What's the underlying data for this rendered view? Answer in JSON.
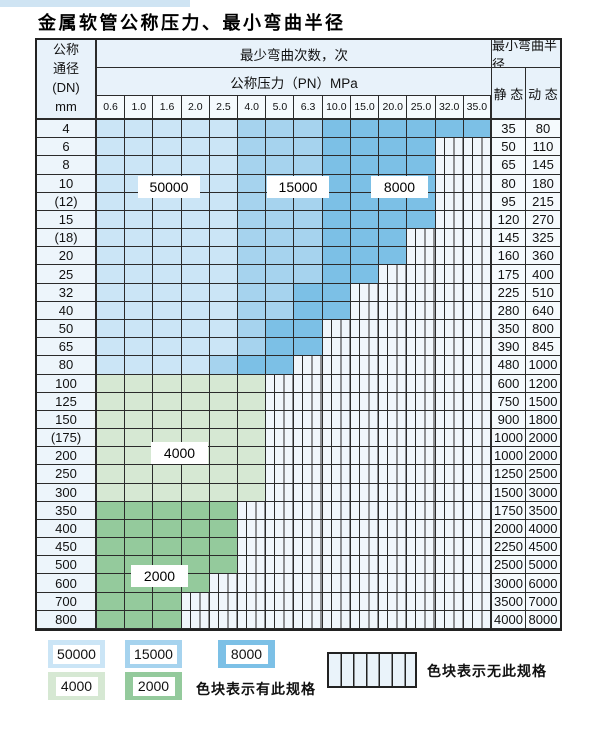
{
  "page": {
    "title": "金属软管公称压力、最小弯曲半径"
  },
  "table": {
    "header": {
      "dn_title": "公称\n通径\n(DN)\nmm",
      "bend_cycles": "最少弯曲次数，次",
      "pn": "公称压力（PN）MPa",
      "radius": "最小弯曲半径",
      "static": "静 态",
      "dynamic": "动 态",
      "pressures": [
        "0.6",
        "1.0",
        "1.6",
        "2.0",
        "2.5",
        "4.0",
        "5.0",
        "6.3",
        "10.0",
        "15.0",
        "20.0",
        "25.0",
        "32.0",
        "35.0"
      ]
    },
    "rows": [
      {
        "dn": "4",
        "s": "35",
        "d": "80",
        "bands": [
          [
            "blue-light",
            5
          ],
          [
            "blue-mid",
            3
          ],
          [
            "blue-dark",
            6
          ]
        ]
      },
      {
        "dn": "6",
        "s": "50",
        "d": "110",
        "bands": [
          [
            "blue-light",
            5
          ],
          [
            "blue-mid",
            3
          ],
          [
            "blue-dark",
            4
          ]
        ]
      },
      {
        "dn": "8",
        "s": "65",
        "d": "145",
        "bands": [
          [
            "blue-light",
            5
          ],
          [
            "blue-mid",
            3
          ],
          [
            "blue-dark",
            4
          ]
        ]
      },
      {
        "dn": "10",
        "s": "80",
        "d": "180",
        "bands": [
          [
            "blue-light",
            5
          ],
          [
            "blue-mid",
            3
          ],
          [
            "blue-dark",
            4
          ]
        ]
      },
      {
        "dn": "(12)",
        "s": "95",
        "d": "215",
        "bands": [
          [
            "blue-light",
            5
          ],
          [
            "blue-mid",
            3
          ],
          [
            "blue-dark",
            4
          ]
        ]
      },
      {
        "dn": "15",
        "s": "120",
        "d": "270",
        "bands": [
          [
            "blue-light",
            5
          ],
          [
            "blue-mid",
            3
          ],
          [
            "blue-dark",
            4
          ]
        ]
      },
      {
        "dn": "(18)",
        "s": "145",
        "d": "325",
        "bands": [
          [
            "blue-light",
            5
          ],
          [
            "blue-mid",
            3
          ],
          [
            "blue-dark",
            3
          ]
        ]
      },
      {
        "dn": "20",
        "s": "160",
        "d": "360",
        "bands": [
          [
            "blue-light",
            5
          ],
          [
            "blue-mid",
            3
          ],
          [
            "blue-dark",
            3
          ]
        ]
      },
      {
        "dn": "25",
        "s": "175",
        "d": "400",
        "bands": [
          [
            "blue-light",
            5
          ],
          [
            "blue-mid",
            3
          ],
          [
            "blue-dark",
            2
          ]
        ]
      },
      {
        "dn": "32",
        "s": "225",
        "d": "510",
        "bands": [
          [
            "blue-light",
            5
          ],
          [
            "blue-mid",
            2
          ],
          [
            "blue-dark",
            2
          ]
        ]
      },
      {
        "dn": "40",
        "s": "280",
        "d": "640",
        "bands": [
          [
            "blue-light",
            5
          ],
          [
            "blue-mid",
            2
          ],
          [
            "blue-dark",
            2
          ]
        ]
      },
      {
        "dn": "50",
        "s": "350",
        "d": "800",
        "bands": [
          [
            "blue-light",
            5
          ],
          [
            "blue-mid",
            1
          ],
          [
            "blue-dark",
            2
          ]
        ]
      },
      {
        "dn": "65",
        "s": "390",
        "d": "845",
        "bands": [
          [
            "blue-light",
            5
          ],
          [
            "blue-mid",
            1
          ],
          [
            "blue-dark",
            2
          ]
        ]
      },
      {
        "dn": "80",
        "s": "480",
        "d": "1000",
        "bands": [
          [
            "blue-light",
            4
          ],
          [
            "blue-mid",
            1
          ],
          [
            "blue-dark",
            2
          ]
        ]
      },
      {
        "dn": "100",
        "s": "600",
        "d": "1200",
        "bands": [
          [
            "green-light",
            6
          ]
        ]
      },
      {
        "dn": "125",
        "s": "750",
        "d": "1500",
        "bands": [
          [
            "green-light",
            6
          ]
        ]
      },
      {
        "dn": "150",
        "s": "900",
        "d": "1800",
        "bands": [
          [
            "green-light",
            6
          ]
        ]
      },
      {
        "dn": "(175)",
        "s": "1000",
        "d": "2000",
        "bands": [
          [
            "green-light",
            6
          ]
        ]
      },
      {
        "dn": "200",
        "s": "1000",
        "d": "2000",
        "bands": [
          [
            "green-light",
            6
          ]
        ]
      },
      {
        "dn": "250",
        "s": "1250",
        "d": "2500",
        "bands": [
          [
            "green-light",
            6
          ]
        ]
      },
      {
        "dn": "300",
        "s": "1500",
        "d": "3000",
        "bands": [
          [
            "green-light",
            6
          ]
        ]
      },
      {
        "dn": "350",
        "s": "1750",
        "d": "3500",
        "bands": [
          [
            "green-mid",
            5
          ]
        ]
      },
      {
        "dn": "400",
        "s": "2000",
        "d": "4000",
        "bands": [
          [
            "green-mid",
            5
          ]
        ]
      },
      {
        "dn": "450",
        "s": "2250",
        "d": "4500",
        "bands": [
          [
            "green-mid",
            5
          ]
        ]
      },
      {
        "dn": "500",
        "s": "2500",
        "d": "5000",
        "bands": [
          [
            "green-mid",
            5
          ]
        ]
      },
      {
        "dn": "600",
        "s": "3000",
        "d": "6000",
        "bands": [
          [
            "green-mid",
            4
          ]
        ]
      },
      {
        "dn": "700",
        "s": "3500",
        "d": "7000",
        "bands": [
          [
            "green-mid",
            3
          ]
        ]
      },
      {
        "dn": "800",
        "s": "4000",
        "d": "8000",
        "bands": [
          [
            "green-mid",
            3
          ]
        ]
      }
    ]
  },
  "cycle_labels": [
    "50000",
    "15000",
    "8000",
    "4000",
    "2000"
  ],
  "legend": {
    "items": [
      {
        "label": "50000",
        "tone": "blue-light"
      },
      {
        "label": "15000",
        "tone": "blue-mid"
      },
      {
        "label": "8000",
        "tone": "blue-dark"
      },
      {
        "label": "4000",
        "tone": "green-light"
      },
      {
        "label": "2000",
        "tone": "green-mid"
      }
    ],
    "has_spec": "色块表示有此规格",
    "no_spec": "色块表示无此规格"
  },
  "colors": {
    "blue_light": "#cbe5f6",
    "blue_mid": "#a6d3ee",
    "blue_dark": "#7cc0e6",
    "green_light": "#d6e8d3",
    "green_mid": "#94ca9c",
    "header_bg": "#e8f2fa",
    "border": "#2b2b2b"
  }
}
